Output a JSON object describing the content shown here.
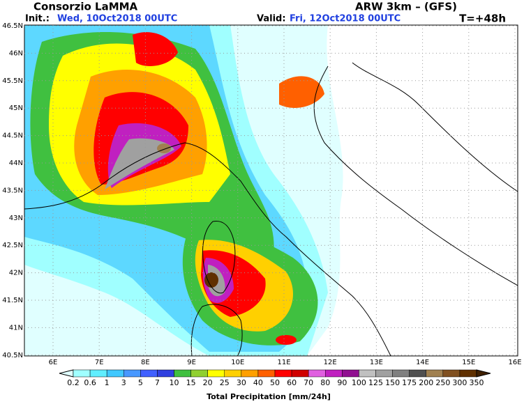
{
  "header": {
    "title": "Consorzio LaMMA",
    "model": "ARW 3km – (GFS)",
    "init_label": "Init.:",
    "init_time": "Wed, 10Oct2018 00UTC",
    "valid_label": "Valid:",
    "valid_time": "Fri, 12Oct2018 00UTC",
    "lead_time": "T=+48h"
  },
  "map": {
    "lat_labels": [
      "46.5N",
      "46N",
      "45.5N",
      "45N",
      "44.5N",
      "44N",
      "43.5N",
      "43N",
      "42.5N",
      "42N",
      "41.5N",
      "41N",
      "40.5N"
    ],
    "lon_labels": [
      "6E",
      "7E",
      "8E",
      "9E",
      "10E",
      "11E",
      "12E",
      "13E",
      "14E",
      "15E",
      "16E"
    ]
  },
  "colorbar": {
    "title": "Total Precipitation [mm/24h]",
    "levels": [
      0.2,
      0.6,
      1,
      3,
      5,
      7,
      10,
      15,
      20,
      25,
      30,
      40,
      50,
      60,
      70,
      80,
      90,
      100,
      125,
      150,
      175,
      200,
      250,
      300,
      350
    ],
    "under_color": "#e0ffff",
    "over_color": "#402000",
    "colors": [
      "#a0ffff",
      "#60eeff",
      "#40c8ff",
      "#4898ff",
      "#4060ff",
      "#3040e0",
      "#40c040",
      "#90d030",
      "#ffff00",
      "#ffd000",
      "#ffa000",
      "#ff6000",
      "#ff0000",
      "#d00000",
      "#e060e0",
      "#c020c0",
      "#901090",
      "#c0c0c0",
      "#a0a0a0",
      "#808080",
      "#505050",
      "#a08050",
      "#805020",
      "#603000"
    ]
  }
}
